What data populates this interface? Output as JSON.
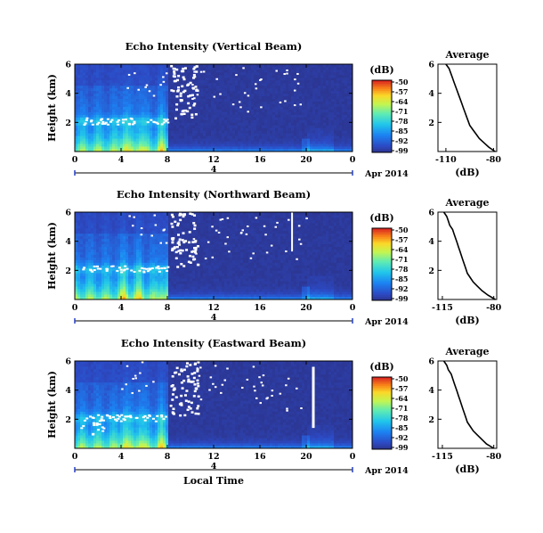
{
  "chart_data": [
    {
      "type": "heatmap",
      "title": "Echo Intensity (Vertical Beam)",
      "ylabel": "Height (km)",
      "xlim": [
        0,
        24
      ],
      "ylim": [
        0,
        6
      ],
      "xticks": [
        "0",
        "4",
        "8",
        "12",
        "16",
        "20",
        "0"
      ],
      "yticks": [
        "2",
        "4",
        "6"
      ],
      "date_label": "4",
      "date_suffix": "Apr 2014",
      "colorbar_unit": "(dB)",
      "colorbar_ticks": [
        "-50",
        "-57",
        "-64",
        "-71",
        "-78",
        "-85",
        "-92",
        "-99"
      ],
      "profile": {
        "title": "Average",
        "xlabel": "(dB)",
        "xticks": [
          "-110",
          "-80"
        ],
        "xlim": [
          -115,
          -78
        ],
        "yticks": [
          "2",
          "4",
          "6"
        ],
        "ylim": [
          0,
          6
        ],
        "height_km": [
          0.0,
          0.3,
          0.6,
          0.9,
          1.2,
          1.5,
          1.8,
          2.1,
          2.4,
          2.7,
          3.0,
          3.3,
          3.6,
          3.9,
          4.2,
          4.5,
          4.8,
          5.1,
          5.4,
          5.7,
          6.0
        ],
        "db": [
          -79,
          -83,
          -86,
          -89,
          -91,
          -93,
          -95,
          -96,
          -97,
          -98,
          -99,
          -100,
          -101,
          -102,
          -103,
          -104,
          -105,
          -106,
          -107,
          -108,
          -110
        ]
      }
    },
    {
      "type": "heatmap",
      "title": "Echo Intensity (Northward Beam)",
      "ylabel": "Height (km)",
      "xlim": [
        0,
        24
      ],
      "ylim": [
        0,
        6
      ],
      "xticks": [
        "0",
        "4",
        "8",
        "12",
        "16",
        "20",
        "0"
      ],
      "yticks": [
        "2",
        "4",
        "6"
      ],
      "date_label": "4",
      "date_suffix": "Apr 2014",
      "colorbar_unit": "(dB)",
      "colorbar_ticks": [
        "-50",
        "-57",
        "-64",
        "-71",
        "-78",
        "-85",
        "-92",
        "-99"
      ],
      "profile": {
        "title": "Average",
        "xlabel": "(dB)",
        "xticks": [
          "-115",
          "-80"
        ],
        "xlim": [
          -118,
          -78
        ],
        "yticks": [
          "2",
          "4",
          "6"
        ],
        "ylim": [
          0,
          6
        ],
        "height_km": [
          0.0,
          0.3,
          0.6,
          0.9,
          1.2,
          1.5,
          1.8,
          2.1,
          2.4,
          2.7,
          3.0,
          3.3,
          3.6,
          3.9,
          4.2,
          4.5,
          4.8,
          5.1,
          5.4,
          5.7,
          6.0
        ],
        "db": [
          -79,
          -84,
          -88,
          -91,
          -94,
          -96,
          -98,
          -99,
          -100,
          -101,
          -102,
          -103,
          -104,
          -105,
          -106,
          -107,
          -108,
          -110,
          -111,
          -112,
          -114
        ]
      }
    },
    {
      "type": "heatmap",
      "title": "Echo Intensity (Eastward Beam)",
      "ylabel": "Height (km)",
      "xlabel": "Local Time",
      "xlim": [
        0,
        24
      ],
      "ylim": [
        0,
        6
      ],
      "xticks": [
        "0",
        "4",
        "8",
        "12",
        "16",
        "20",
        "0"
      ],
      "yticks": [
        "2",
        "4",
        "6"
      ],
      "date_label": "4",
      "date_suffix": "Apr 2014",
      "colorbar_unit": "(dB)",
      "colorbar_ticks": [
        "-50",
        "-57",
        "-64",
        "-71",
        "-78",
        "-85",
        "-92",
        "-99"
      ],
      "profile": {
        "title": "Average",
        "xlabel": "(dB)",
        "xticks": [
          "-115",
          "-80"
        ],
        "xlim": [
          -118,
          -78
        ],
        "yticks": [
          "2",
          "4",
          "6"
        ],
        "ylim": [
          0,
          6
        ],
        "height_km": [
          0.0,
          0.3,
          0.6,
          0.9,
          1.2,
          1.5,
          1.8,
          2.1,
          2.4,
          2.7,
          3.0,
          3.3,
          3.6,
          3.9,
          4.2,
          4.5,
          4.8,
          5.1,
          5.4,
          5.7,
          6.0
        ],
        "db": [
          -80,
          -85,
          -88,
          -91,
          -94,
          -96,
          -98,
          -99,
          -100,
          -101,
          -102,
          -103,
          -104,
          -105,
          -106,
          -107,
          -108,
          -109,
          -111,
          -112,
          -114
        ]
      }
    }
  ]
}
